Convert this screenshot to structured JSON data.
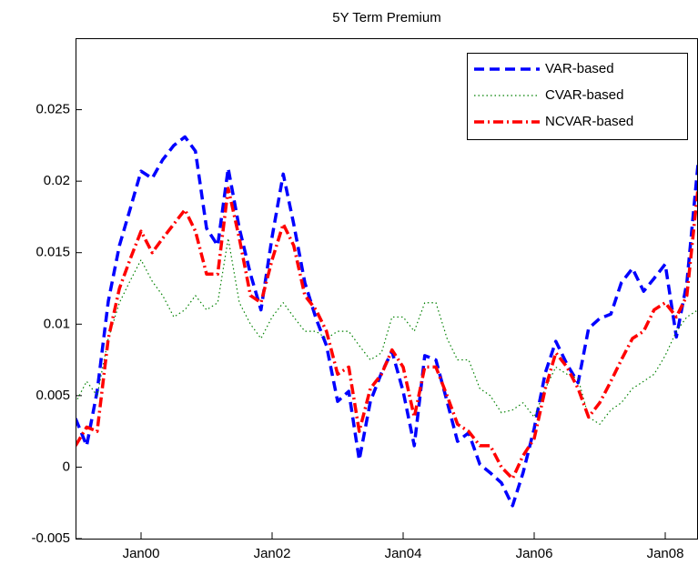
{
  "chart_data": {
    "type": "line",
    "title": "5Y Term Premium",
    "x": [
      1999,
      1999.17,
      1999.33,
      1999.5,
      1999.67,
      1999.83,
      2000,
      2000.17,
      2000.33,
      2000.5,
      2000.67,
      2000.83,
      2001,
      2001.17,
      2001.33,
      2001.5,
      2001.67,
      2001.83,
      2002,
      2002.17,
      2002.33,
      2002.5,
      2002.67,
      2002.83,
      2003,
      2003.17,
      2003.33,
      2003.5,
      2003.67,
      2003.83,
      2004,
      2004.17,
      2004.33,
      2004.5,
      2004.67,
      2004.83,
      2005,
      2005.17,
      2005.33,
      2005.5,
      2005.67,
      2005.83,
      2006,
      2006.17,
      2006.33,
      2006.5,
      2006.67,
      2006.83,
      2007,
      2007.17,
      2007.33,
      2007.5,
      2007.67,
      2007.83,
      2008,
      2008.17,
      2008.33,
      2008.5
    ],
    "series": [
      {
        "name": "VAR-based",
        "color": "#0000ff",
        "style": "dashed",
        "values": [
          0.0034,
          0.0015,
          0.0053,
          0.0116,
          0.0155,
          0.018,
          0.0207,
          0.0202,
          0.0215,
          0.0225,
          0.0231,
          0.0221,
          0.0167,
          0.0155,
          0.0209,
          0.0167,
          0.0135,
          0.011,
          0.0161,
          0.0205,
          0.017,
          0.0129,
          0.0104,
          0.0085,
          0.0046,
          0.0053,
          0.0005,
          0.0046,
          0.0066,
          0.0081,
          0.0053,
          0.0015,
          0.0078,
          0.0075,
          0.0046,
          0.0018,
          0.0024,
          0.0002,
          -0.0004,
          -0.0011,
          -0.0027,
          -0.0004,
          0.0027,
          0.0066,
          0.0088,
          0.0072,
          0.0059,
          0.0097,
          0.0104,
          0.0107,
          0.0129,
          0.0139,
          0.0123,
          0.0132,
          0.0142,
          0.0091,
          0.0129,
          0.0212
        ]
      },
      {
        "name": "CVAR-based",
        "color": "#008000",
        "style": "dotted",
        "values": [
          0.0045,
          0.006,
          0.005,
          0.009,
          0.0115,
          0.013,
          0.0145,
          0.013,
          0.012,
          0.0105,
          0.011,
          0.012,
          0.011,
          0.0115,
          0.016,
          0.0115,
          0.01,
          0.009,
          0.0105,
          0.0115,
          0.0105,
          0.0095,
          0.0095,
          0.009,
          0.0095,
          0.0095,
          0.0085,
          0.0075,
          0.008,
          0.0105,
          0.0105,
          0.0095,
          0.0115,
          0.0115,
          0.009,
          0.0075,
          0.0075,
          0.0055,
          0.005,
          0.0038,
          0.004,
          0.0045,
          0.0035,
          0.0055,
          0.007,
          0.0065,
          0.0062,
          0.0035,
          0.003,
          0.004,
          0.0045,
          0.0055,
          0.006,
          0.0065,
          0.0078,
          0.0095,
          0.0105,
          0.011
        ]
      },
      {
        "name": "NCVAR-based",
        "color": "#ff0000",
        "style": "dashdot",
        "values": [
          0.0015,
          0.0028,
          0.0025,
          0.009,
          0.0125,
          0.0145,
          0.0165,
          0.015,
          0.016,
          0.017,
          0.018,
          0.0165,
          0.0135,
          0.0135,
          0.0195,
          0.016,
          0.012,
          0.0115,
          0.0145,
          0.017,
          0.0155,
          0.012,
          0.011,
          0.0095,
          0.0065,
          0.007,
          0.0025,
          0.0055,
          0.0065,
          0.0082,
          0.007,
          0.0035,
          0.007,
          0.007,
          0.005,
          0.003,
          0.0025,
          0.0015,
          0.0015,
          0.0,
          -0.0008,
          0.0008,
          0.002,
          0.0055,
          0.008,
          0.007,
          0.0055,
          0.0035,
          0.0045,
          0.006,
          0.0075,
          0.009,
          0.0095,
          0.011,
          0.0115,
          0.0105,
          0.012,
          0.0195
        ]
      }
    ],
    "xlim": [
      1999,
      2008.5
    ],
    "xticks": [
      {
        "value": 2000,
        "label": "Jan00"
      },
      {
        "value": 2002,
        "label": "Jan02"
      },
      {
        "value": 2004,
        "label": "Jan04"
      },
      {
        "value": 2006,
        "label": "Jan06"
      },
      {
        "value": 2008,
        "label": "Jan08"
      }
    ],
    "ylim": [
      -0.005,
      0.03
    ],
    "yticks": [
      -0.005,
      0,
      0.005,
      0.01,
      0.015,
      0.02,
      0.025
    ],
    "legend": "northeast"
  }
}
